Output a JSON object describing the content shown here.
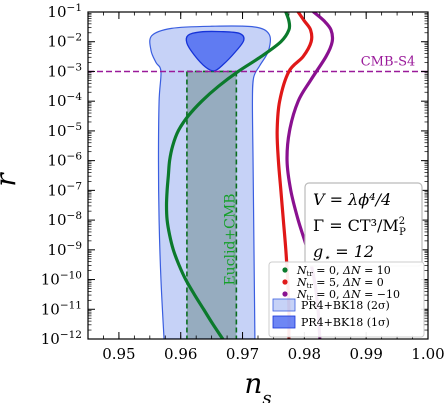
{
  "chart_data": {
    "type": "line",
    "xlabel_base": "n",
    "xlabel_sub": "s",
    "ylabel": "r",
    "xlim": [
      0.945,
      1.0
    ],
    "ylim_log10": [
      -12,
      -1
    ],
    "yscale": "log",
    "x_ticks": [
      {
        "value": 0.95,
        "label": "0.95"
      },
      {
        "value": 0.96,
        "label": "0.96"
      },
      {
        "value": 0.97,
        "label": "0.97"
      },
      {
        "value": 0.98,
        "label": "0.98"
      },
      {
        "value": 0.99,
        "label": "0.99"
      },
      {
        "value": 1.0,
        "label": "1.00"
      }
    ],
    "y_ticks": [
      {
        "exp": -1,
        "label_base": "10",
        "label_exp": "−1"
      },
      {
        "exp": -2,
        "label_base": "10",
        "label_exp": "−2"
      },
      {
        "exp": -3,
        "label_base": "10",
        "label_exp": "−3"
      },
      {
        "exp": -4,
        "label_base": "10",
        "label_exp": "−4"
      },
      {
        "exp": -5,
        "label_base": "10",
        "label_exp": "−5"
      },
      {
        "exp": -6,
        "label_base": "10",
        "label_exp": "−6"
      },
      {
        "exp": -7,
        "label_base": "10",
        "label_exp": "−7"
      },
      {
        "exp": -8,
        "label_base": "10",
        "label_exp": "−8"
      },
      {
        "exp": -9,
        "label_base": "10",
        "label_exp": "−9"
      },
      {
        "exp": -10,
        "label_base": "10",
        "label_exp": "−10"
      },
      {
        "exp": -11,
        "label_base": "10",
        "label_exp": "−11"
      },
      {
        "exp": -12,
        "label_base": "10",
        "label_exp": "−12"
      }
    ],
    "regions": [
      {
        "name": "PR4+BK18 (2σ)",
        "color": "#5b7fe8",
        "opacity": 0.35,
        "stroke": "#3a5ee0",
        "outline": [
          [
            0.9573,
            -12.0
          ],
          [
            0.9568,
            -10.0
          ],
          [
            0.9565,
            -8.0
          ],
          [
            0.9564,
            -6.0
          ],
          [
            0.9565,
            -4.0
          ],
          [
            0.9568,
            -3.0
          ],
          [
            0.956,
            -2.7
          ],
          [
            0.9552,
            -2.3
          ],
          [
            0.9553,
            -1.8
          ],
          [
            0.9585,
            -1.55
          ],
          [
            0.965,
            -1.48
          ],
          [
            0.9718,
            -1.5
          ],
          [
            0.9743,
            -1.75
          ],
          [
            0.9742,
            -2.3
          ],
          [
            0.9728,
            -2.8
          ],
          [
            0.9718,
            -3.2
          ],
          [
            0.9716,
            -4.0
          ],
          [
            0.9717,
            -6.0
          ],
          [
            0.9718,
            -8.0
          ],
          [
            0.9719,
            -10.0
          ],
          [
            0.972,
            -12.0
          ]
        ]
      },
      {
        "name": "PR4+BK18 (1σ)",
        "color": "#3d5ef0",
        "opacity": 0.75,
        "stroke": "#1633d8",
        "outline": [
          [
            0.9612,
            -1.78
          ],
          [
            0.9632,
            -1.67
          ],
          [
            0.9665,
            -1.66
          ],
          [
            0.9695,
            -1.72
          ],
          [
            0.9702,
            -1.95
          ],
          [
            0.9688,
            -2.35
          ],
          [
            0.9668,
            -2.78
          ],
          [
            0.9654,
            -2.98
          ],
          [
            0.964,
            -2.85
          ],
          [
            0.9622,
            -2.45
          ],
          [
            0.961,
            -2.05
          ]
        ]
      }
    ],
    "euclid_band": {
      "label": "Euclid+CMB",
      "x_range": [
        0.961,
        0.969
      ],
      "top_log10": -3.0,
      "color": "#5a7f7a",
      "opacity": 0.45,
      "edge_color": "#0a6e1e",
      "text_color": "#14a028"
    },
    "cmb_s4": {
      "label": "CMB-S4",
      "value_log10": -3.0,
      "color": "#9a1a9a"
    },
    "series": [
      {
        "name_parts": [
          "N",
          "tr",
          " = 0, ",
          "ΔN",
          " = 10"
        ],
        "color": "#0b7a2c",
        "legend_marker": "#0b7a2c",
        "points": [
          [
            0.9668,
            -12.0
          ],
          [
            0.9652,
            -11.5
          ],
          [
            0.9637,
            -11.0
          ],
          [
            0.9622,
            -10.5
          ],
          [
            0.9608,
            -10.0
          ],
          [
            0.9597,
            -9.5
          ],
          [
            0.9588,
            -9.0
          ],
          [
            0.9582,
            -8.5
          ],
          [
            0.9578,
            -8.0
          ],
          [
            0.9577,
            -7.5
          ],
          [
            0.9578,
            -7.0
          ],
          [
            0.958,
            -6.5
          ],
          [
            0.9582,
            -6.0
          ],
          [
            0.9587,
            -5.5
          ],
          [
            0.9596,
            -5.0
          ],
          [
            0.9612,
            -4.5
          ],
          [
            0.9634,
            -4.0
          ],
          [
            0.9661,
            -3.5
          ],
          [
            0.9693,
            -3.0
          ],
          [
            0.973,
            -2.5
          ],
          [
            0.9762,
            -2.0
          ],
          [
            0.9775,
            -1.6
          ],
          [
            0.9775,
            -1.3
          ],
          [
            0.977,
            -1.0
          ]
        ]
      },
      {
        "name_parts": [
          "N",
          "tr",
          " = 5, ",
          "ΔN",
          " = 0"
        ],
        "color": "#e01818",
        "legend_marker": "#e01818",
        "points": [
          [
            0.9775,
            -12.0
          ],
          [
            0.9775,
            -11.0
          ],
          [
            0.9773,
            -10.0
          ],
          [
            0.977,
            -9.0
          ],
          [
            0.9766,
            -8.0
          ],
          [
            0.9762,
            -7.0
          ],
          [
            0.9758,
            -6.0
          ],
          [
            0.9756,
            -5.0
          ],
          [
            0.976,
            -4.0
          ],
          [
            0.9775,
            -3.0
          ],
          [
            0.9798,
            -2.5
          ],
          [
            0.9811,
            -2.0
          ],
          [
            0.981,
            -1.6
          ],
          [
            0.98,
            -1.3
          ],
          [
            0.979,
            -1.0
          ]
        ]
      },
      {
        "name_parts": [
          "N",
          "tr",
          " = 0, ",
          "ΔN",
          " = −10"
        ],
        "color": "#8a1190",
        "legend_marker": "#8a1190",
        "points": [
          [
            0.9825,
            -12.0
          ],
          [
            0.9822,
            -11.0
          ],
          [
            0.9816,
            -10.0
          ],
          [
            0.9805,
            -9.0
          ],
          [
            0.979,
            -8.0
          ],
          [
            0.9778,
            -7.0
          ],
          [
            0.9772,
            -6.0
          ],
          [
            0.9776,
            -5.0
          ],
          [
            0.979,
            -4.0
          ],
          [
            0.981,
            -3.3
          ],
          [
            0.9835,
            -2.5
          ],
          [
            0.9845,
            -2.0
          ],
          [
            0.9843,
            -1.6
          ],
          [
            0.9832,
            -1.3
          ],
          [
            0.9815,
            -1.0
          ]
        ]
      }
    ],
    "model_box": {
      "line1": "V = λϕ⁴/4",
      "line2_prefix": "Γ = CT³/M",
      "line2_sub": "P",
      "line2_sup": "2",
      "line3_prefix": "g",
      "line3_sub": "⋆",
      "line3_suffix": " = 12"
    },
    "legend_placement": "bottom-right",
    "grid": false
  }
}
